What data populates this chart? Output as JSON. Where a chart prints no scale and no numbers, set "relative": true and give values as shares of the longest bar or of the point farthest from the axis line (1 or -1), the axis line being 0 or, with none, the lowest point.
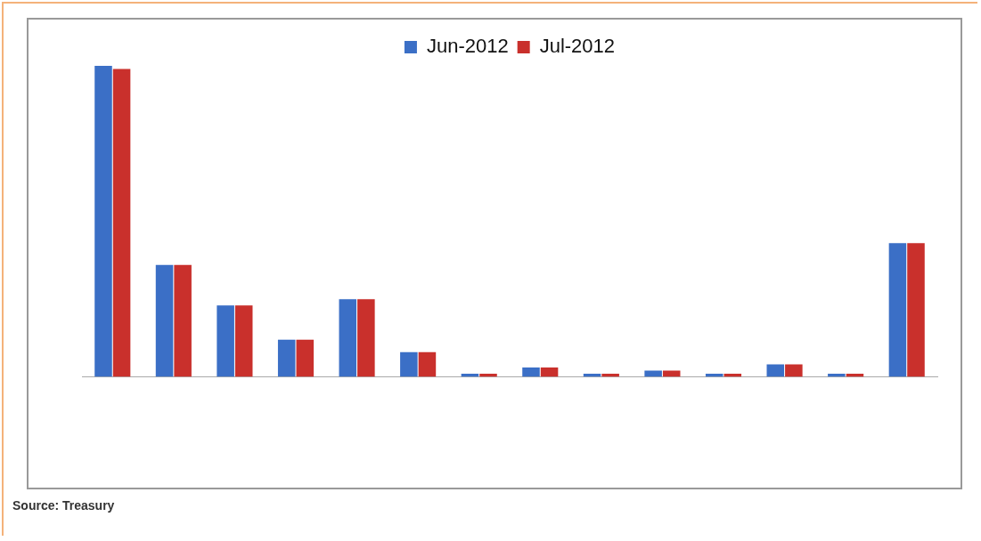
{
  "chart_data": {
    "type": "bar",
    "relative": true,
    "legend": "top",
    "categories": [
      null,
      null,
      null,
      null,
      null,
      null,
      null,
      null,
      null,
      null,
      null,
      null,
      null,
      null
    ],
    "series": [
      {
        "name": "Jun-2012",
        "color": "#3b6fc6",
        "values": [
          1,
          0.36,
          0.23,
          0.12,
          0.25,
          0.08,
          0.01,
          0.03,
          0.01,
          0.02,
          0.01,
          0.04,
          0.01,
          0.43
        ]
      },
      {
        "name": "Jul-2012",
        "color": "#c9302c",
        "values": [
          0.99,
          0.36,
          0.23,
          0.12,
          0.25,
          0.08,
          0.01,
          0.03,
          0.01,
          0.02,
          0.01,
          0.04,
          0.01,
          0.43
        ]
      }
    ],
    "annotations": [
      "Source:  Treasury"
    ]
  }
}
